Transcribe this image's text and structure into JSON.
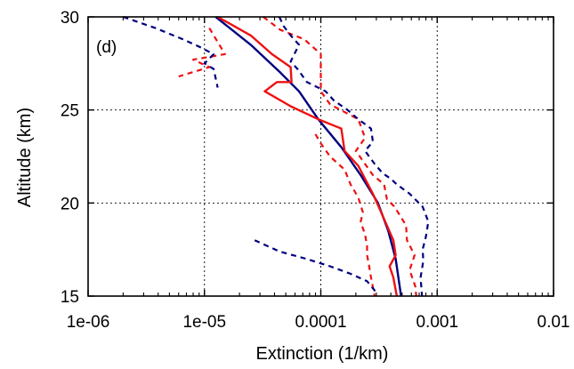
{
  "chart_data": {
    "type": "line",
    "panel_label": "(d)",
    "xlabel": "Extinction (1/km)",
    "ylabel": "Altitude (km)",
    "xscale": "log",
    "xlim": [
      1e-06,
      0.01
    ],
    "ylim": [
      15,
      30
    ],
    "xticks": [
      1e-06,
      1e-05,
      0.0001,
      0.001,
      0.01
    ],
    "xtick_labels": [
      "1e-06",
      "1e-05",
      "0.0001",
      "0.001",
      "0.01"
    ],
    "yticks": [
      15,
      20,
      25,
      30
    ],
    "ytick_labels": [
      "15",
      "20",
      "25",
      "30"
    ],
    "grid": true,
    "legend": "none",
    "series": [
      {
        "color": "#000080",
        "style": "solid",
        "points": [
          [
            1.25e-05,
            30
          ],
          [
            2.5e-05,
            28.5
          ],
          [
            4.5e-05,
            27
          ],
          [
            6.5e-05,
            26
          ],
          [
            9.5e-05,
            24.5
          ],
          [
            0.00015,
            23
          ],
          [
            0.00022,
            21.5
          ],
          [
            0.00031,
            20
          ],
          [
            0.00038,
            18.5
          ],
          [
            0.00044,
            17
          ],
          [
            0.00049,
            15
          ]
        ]
      },
      {
        "color": "#ee1111",
        "style": "solid",
        "points": [
          [
            1.3e-05,
            30
          ],
          [
            2.5e-05,
            29
          ],
          [
            3.8e-05,
            28
          ],
          [
            5.5e-05,
            27.3
          ],
          [
            5.6e-05,
            26.5
          ],
          [
            4.2e-05,
            26.5
          ],
          [
            3.3e-05,
            26
          ],
          [
            5.5e-05,
            25.2
          ],
          [
            9.5e-05,
            24.5
          ],
          [
            0.00015,
            24
          ],
          [
            0.00016,
            22.8
          ],
          [
            0.00021,
            22
          ],
          [
            0.00028,
            20.5
          ],
          [
            0.00033,
            19.5
          ],
          [
            0.00042,
            18
          ],
          [
            0.00044,
            17.2
          ],
          [
            0.00039,
            16.6
          ],
          [
            0.00042,
            16
          ],
          [
            0.00045,
            15
          ]
        ]
      },
      {
        "color": "#ee1111",
        "style": "dashed",
        "points": [
          [
            3.2e-05,
            30
          ],
          [
            4.5e-05,
            29.3
          ],
          [
            7.2e-05,
            28.8
          ],
          [
            0.0001,
            28
          ],
          [
            0.0001,
            27
          ],
          [
            0.0001,
            26
          ],
          [
            0.00012,
            25.3
          ],
          [
            0.00021,
            24.5
          ],
          [
            0.00024,
            23.5
          ],
          [
            0.0002,
            22.8
          ],
          [
            0.00028,
            21.5
          ],
          [
            0.00035,
            21
          ],
          [
            0.00037,
            20.2
          ],
          [
            0.00043,
            19.8
          ],
          [
            0.00054,
            18.8
          ],
          [
            0.00055,
            18
          ],
          [
            0.00064,
            17.2
          ],
          [
            0.00058,
            16.4
          ],
          [
            0.00065,
            15.5
          ],
          [
            0.00066,
            15
          ]
        ]
      },
      {
        "color": "#ee1111",
        "style": "dashed",
        "points": [
          [
            9e-05,
            23.7
          ],
          [
            0.0001,
            23.2
          ],
          [
            0.00012,
            22.5
          ],
          [
            0.00016,
            21.8
          ],
          [
            0.00018,
            21
          ],
          [
            0.00021,
            20.3
          ],
          [
            0.00023,
            19.5
          ],
          [
            0.00022,
            19
          ],
          [
            0.00024,
            18.3
          ],
          [
            0.00025,
            17.7
          ],
          [
            0.00025,
            17.2
          ],
          [
            0.00026,
            16.6
          ],
          [
            0.00027,
            16
          ],
          [
            0.00029,
            15
          ]
        ]
      },
      {
        "color": "#ee1111",
        "style": "dashed",
        "points": [
          [
            1.1e-05,
            29.4
          ],
          [
            1.5e-05,
            28
          ],
          [
            8e-06,
            27.7
          ],
          [
            1.1e-05,
            27.3
          ],
          [
            6e-06,
            26.8
          ]
        ]
      },
      {
        "color": "#000080",
        "style": "dashed",
        "points": [
          [
            4.4e-05,
            30
          ],
          [
            4.8e-05,
            29.5
          ],
          [
            5.5e-05,
            29
          ],
          [
            6.5e-05,
            28.5
          ],
          [
            5.5e-05,
            27.6
          ],
          [
            6.3e-05,
            27.2
          ],
          [
            7.6e-05,
            26.5
          ],
          [
            0.00011,
            26
          ],
          [
            0.00013,
            25.5
          ],
          [
            0.00017,
            25
          ],
          [
            0.00021,
            24.5
          ],
          [
            0.00027,
            24
          ],
          [
            0.00028,
            23.3
          ],
          [
            0.00024,
            22.8
          ],
          [
            0.00029,
            22.1
          ],
          [
            0.00034,
            21.6
          ],
          [
            0.0004,
            21.3
          ],
          [
            0.00045,
            21
          ],
          [
            0.00058,
            20.5
          ],
          [
            0.00075,
            19.8
          ],
          [
            0.00084,
            19
          ],
          [
            0.0008,
            18.2
          ],
          [
            0.00075,
            17.5
          ],
          [
            0.00076,
            16.9
          ],
          [
            0.00072,
            16
          ],
          [
            0.00074,
            15
          ]
        ]
      },
      {
        "color": "#000080",
        "style": "dashed",
        "points": [
          [
            2.7e-05,
            18
          ],
          [
            4.4e-05,
            17.4
          ],
          [
            7.5e-05,
            17
          ],
          [
            0.00012,
            16.6
          ],
          [
            0.00018,
            16.2
          ],
          [
            0.00025,
            15.8
          ],
          [
            0.00029,
            15.3
          ],
          [
            0.0003,
            15
          ]
        ]
      },
      {
        "color": "#000080",
        "style": "dashed",
        "points": [
          [
            2e-06,
            30
          ],
          [
            3.8e-06,
            29.4
          ],
          [
            6.5e-06,
            28.8
          ],
          [
            9e-06,
            28.4
          ],
          [
            1.2e-05,
            28
          ],
          [
            1e-05,
            27.5
          ],
          [
            1.2e-05,
            27.2
          ],
          [
            1.3e-05,
            26.2
          ]
        ]
      }
    ]
  }
}
